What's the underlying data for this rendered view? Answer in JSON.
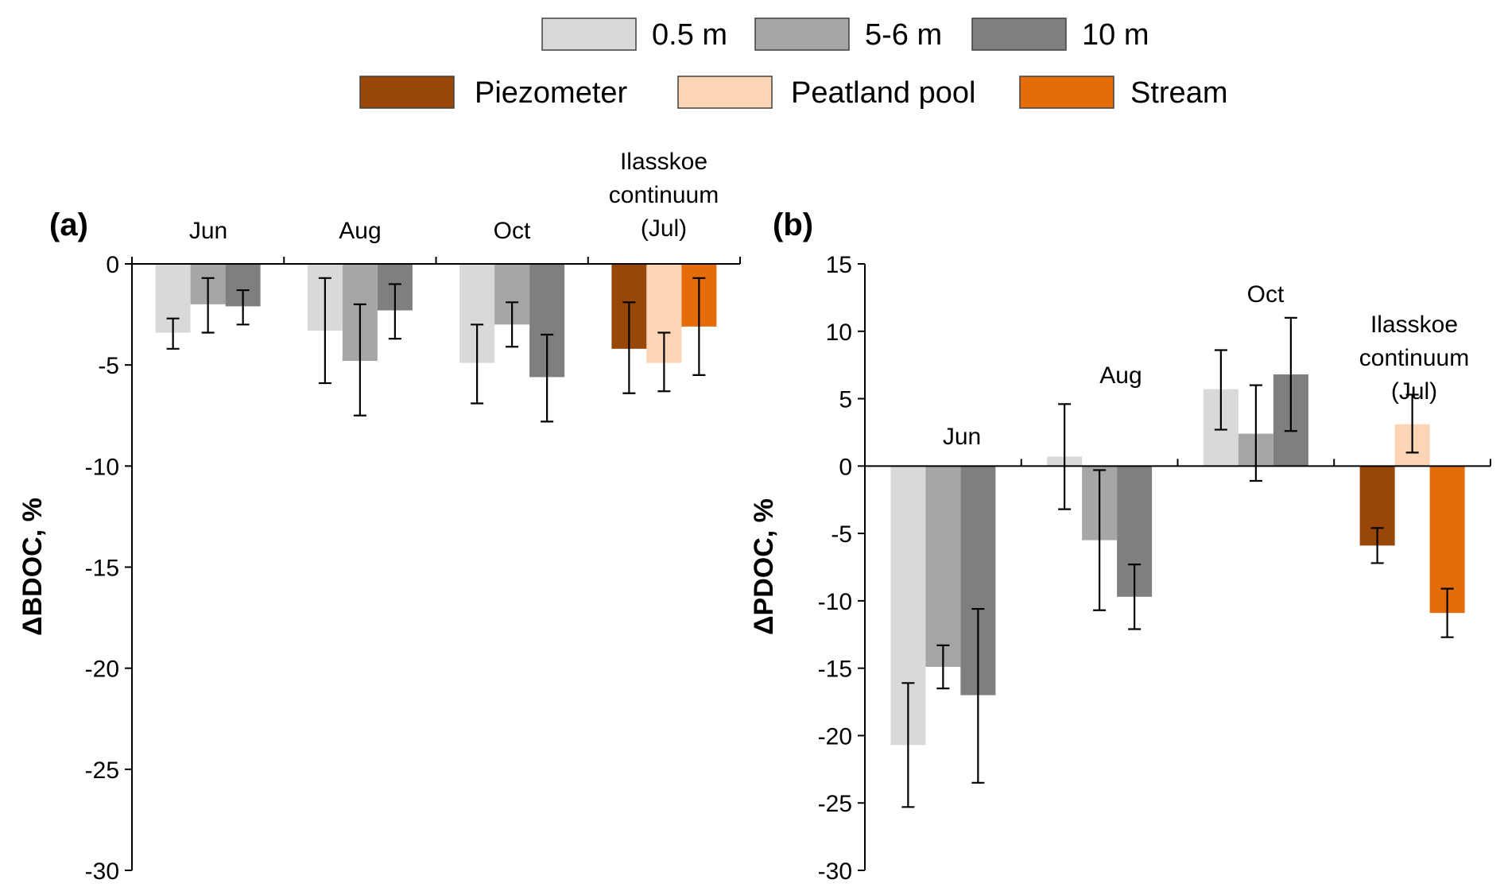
{
  "legend": {
    "row1": [
      {
        "key": "d05",
        "label": "0.5 m",
        "color": "#d9d9d9"
      },
      {
        "key": "d56",
        "label": "5-6 m",
        "color": "#a6a6a6"
      },
      {
        "key": "d10",
        "label": "10 m",
        "color": "#7f7f7f"
      }
    ],
    "row2": [
      {
        "key": "piezo",
        "label": "Piezometer",
        "color": "#994708"
      },
      {
        "key": "pool",
        "label": "Peatland pool",
        "color": "#fbd5b5"
      },
      {
        "key": "stream",
        "label": "Stream",
        "color": "#e46c0a"
      }
    ]
  },
  "chart_data": [
    {
      "type": "bar",
      "panel_label": "(a)",
      "ylabel": "ΔBDOC, %",
      "ylim": [
        -30,
        0
      ],
      "yticks": [
        0,
        -5,
        -10,
        -15,
        -20,
        -25,
        -30
      ],
      "groups": [
        {
          "label": [
            "Jun"
          ],
          "bars": [
            {
              "series": "0.5 m",
              "value": -3.4,
              "err_low": -4.2,
              "err_high": -2.7
            },
            {
              "series": "5-6 m",
              "value": -2.0,
              "err_low": -3.4,
              "err_high": -0.7
            },
            {
              "series": "10 m",
              "value": -2.1,
              "err_low": -3.0,
              "err_high": -1.3
            }
          ]
        },
        {
          "label": [
            "Aug"
          ],
          "bars": [
            {
              "series": "0.5 m",
              "value": -3.3,
              "err_low": -5.9,
              "err_high": -0.7
            },
            {
              "series": "5-6 m",
              "value": -4.8,
              "err_low": -7.5,
              "err_high": -2.0
            },
            {
              "series": "10 m",
              "value": -2.3,
              "err_low": -3.7,
              "err_high": -1.0
            }
          ]
        },
        {
          "label": [
            "Oct"
          ],
          "bars": [
            {
              "series": "0.5 m",
              "value": -4.9,
              "err_low": -6.9,
              "err_high": -3.0
            },
            {
              "series": "5-6 m",
              "value": -3.0,
              "err_low": -4.1,
              "err_high": -1.9
            },
            {
              "series": "10 m",
              "value": -5.6,
              "err_low": -7.8,
              "err_high": -3.5
            }
          ]
        },
        {
          "label": [
            "Ilasskoe",
            "continuum",
            "(Jul)"
          ],
          "bars": [
            {
              "series": "Piezometer",
              "value": -4.2,
              "err_low": -6.4,
              "err_high": -1.9
            },
            {
              "series": "Peatland pool",
              "value": -4.9,
              "err_low": -6.3,
              "err_high": -3.4
            },
            {
              "series": "Stream",
              "value": -3.1,
              "err_low": -5.5,
              "err_high": -0.7
            }
          ]
        }
      ]
    },
    {
      "type": "bar",
      "panel_label": "(b)",
      "ylabel": "ΔPDOC, %",
      "ylim": [
        -30,
        15
      ],
      "yticks": [
        15,
        10,
        5,
        0,
        -5,
        -10,
        -15,
        -20,
        -25,
        -30
      ],
      "groups": [
        {
          "label": [
            "Jun"
          ],
          "bars": [
            {
              "series": "0.5 m",
              "value": -20.7,
              "err_low": -25.3,
              "err_high": -16.1
            },
            {
              "series": "5-6 m",
              "value": -14.9,
              "err_low": -16.5,
              "err_high": -13.3
            },
            {
              "series": "10 m",
              "value": -17.0,
              "err_low": -23.5,
              "err_high": -10.6
            }
          ]
        },
        {
          "label": [
            "Aug"
          ],
          "bars": [
            {
              "series": "0.5 m",
              "value": 0.7,
              "err_low": -3.2,
              "err_high": 4.6
            },
            {
              "series": "5-6 m",
              "value": -5.5,
              "err_low": -10.7,
              "err_high": -0.3
            },
            {
              "series": "10 m",
              "value": -9.7,
              "err_low": -12.1,
              "err_high": -7.3
            }
          ]
        },
        {
          "label": [
            "Oct"
          ],
          "bars": [
            {
              "series": "0.5 m",
              "value": 5.7,
              "err_low": 2.7,
              "err_high": 8.6
            },
            {
              "series": "5-6 m",
              "value": 2.4,
              "err_low": -1.1,
              "err_high": 6.0
            },
            {
              "series": "10 m",
              "value": 6.8,
              "err_low": 2.6,
              "err_high": 11.0
            }
          ]
        },
        {
          "label": [
            "Ilasskoe",
            "continuum",
            "(Jul)"
          ],
          "bars": [
            {
              "series": "Piezometer",
              "value": -5.9,
              "err_low": -7.2,
              "err_high": -4.6
            },
            {
              "series": "Peatland pool",
              "value": 3.1,
              "err_low": 1.0,
              "err_high": 5.3
            },
            {
              "series": "Stream",
              "value": -10.9,
              "err_low": -12.7,
              "err_high": -9.1
            }
          ]
        }
      ]
    }
  ]
}
